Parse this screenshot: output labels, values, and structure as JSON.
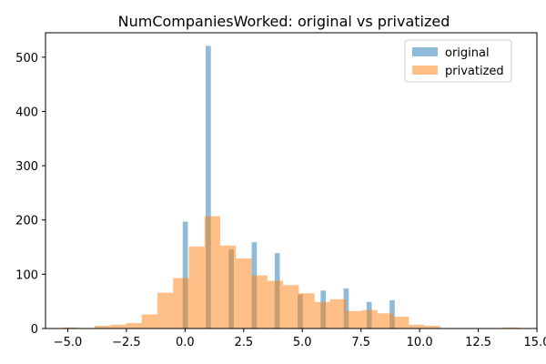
{
  "chart_data": {
    "type": "histogram",
    "title": "NumCompaniesWorked: original vs privatized",
    "xlabel": "",
    "ylabel": "",
    "xlim": [
      -5.95,
      15.0
    ],
    "ylim": [
      0,
      545
    ],
    "xticks": [
      -5.0,
      -2.5,
      0.0,
      2.5,
      5.0,
      7.5,
      10.0,
      12.5,
      15.0
    ],
    "xtick_labels": [
      "−5.0",
      "−2.5",
      "0.0",
      "2.5",
      "5.0",
      "7.5",
      "10.0",
      "12.5",
      "15.0"
    ],
    "yticks": [
      0,
      100,
      200,
      300,
      400,
      500
    ],
    "ytick_labels": [
      "0",
      "100",
      "200",
      "300",
      "400",
      "500"
    ],
    "legend_position": "top-right",
    "series": [
      {
        "name": "original",
        "color": "#1f77b4",
        "alpha": 0.5,
        "bins": [
          {
            "x0": -0.1,
            "x1": 0.12,
            "count": 197
          },
          {
            "x0": 0.88,
            "x1": 1.1,
            "count": 521
          },
          {
            "x0": 1.86,
            "x1": 2.08,
            "count": 146
          },
          {
            "x0": 2.84,
            "x1": 3.06,
            "count": 159
          },
          {
            "x0": 3.82,
            "x1": 4.04,
            "count": 139
          },
          {
            "x0": 4.8,
            "x1": 5.02,
            "count": 63
          },
          {
            "x0": 5.78,
            "x1": 6.0,
            "count": 70
          },
          {
            "x0": 6.76,
            "x1": 6.98,
            "count": 74
          },
          {
            "x0": 7.74,
            "x1": 7.96,
            "count": 49
          },
          {
            "x0": 8.72,
            "x1": 8.94,
            "count": 52
          }
        ]
      },
      {
        "name": "privatized",
        "color": "#ff7f0e",
        "alpha": 0.5,
        "bins": [
          {
            "x0": -5.2,
            "x1": -4.53,
            "count": 2
          },
          {
            "x0": -4.53,
            "x1": -3.86,
            "count": 0
          },
          {
            "x0": -3.86,
            "x1": -3.19,
            "count": 5
          },
          {
            "x0": -3.19,
            "x1": -2.52,
            "count": 7
          },
          {
            "x0": -2.52,
            "x1": -1.85,
            "count": 10
          },
          {
            "x0": -1.85,
            "x1": -1.18,
            "count": 26
          },
          {
            "x0": -1.18,
            "x1": -0.51,
            "count": 66
          },
          {
            "x0": -0.51,
            "x1": 0.16,
            "count": 93
          },
          {
            "x0": 0.16,
            "x1": 0.83,
            "count": 151
          },
          {
            "x0": 0.83,
            "x1": 1.5,
            "count": 207
          },
          {
            "x0": 1.5,
            "x1": 2.17,
            "count": 153
          },
          {
            "x0": 2.17,
            "x1": 2.84,
            "count": 129
          },
          {
            "x0": 2.84,
            "x1": 3.51,
            "count": 98
          },
          {
            "x0": 3.51,
            "x1": 4.18,
            "count": 88
          },
          {
            "x0": 4.18,
            "x1": 4.85,
            "count": 80
          },
          {
            "x0": 4.85,
            "x1": 5.52,
            "count": 65
          },
          {
            "x0": 5.52,
            "x1": 6.19,
            "count": 49
          },
          {
            "x0": 6.19,
            "x1": 6.86,
            "count": 54
          },
          {
            "x0": 6.86,
            "x1": 7.53,
            "count": 32
          },
          {
            "x0": 7.53,
            "x1": 8.2,
            "count": 34
          },
          {
            "x0": 8.2,
            "x1": 8.87,
            "count": 28
          },
          {
            "x0": 8.87,
            "x1": 9.54,
            "count": 22
          },
          {
            "x0": 9.54,
            "x1": 10.21,
            "count": 7
          },
          {
            "x0": 10.21,
            "x1": 10.88,
            "count": 5
          },
          {
            "x0": 10.88,
            "x1": 11.55,
            "count": 0
          },
          {
            "x0": 11.55,
            "x1": 12.22,
            "count": 0
          },
          {
            "x0": 12.22,
            "x1": 12.89,
            "count": 0
          },
          {
            "x0": 12.89,
            "x1": 13.56,
            "count": 0
          },
          {
            "x0": 13.56,
            "x1": 14.23,
            "count": 2
          }
        ]
      }
    ]
  }
}
